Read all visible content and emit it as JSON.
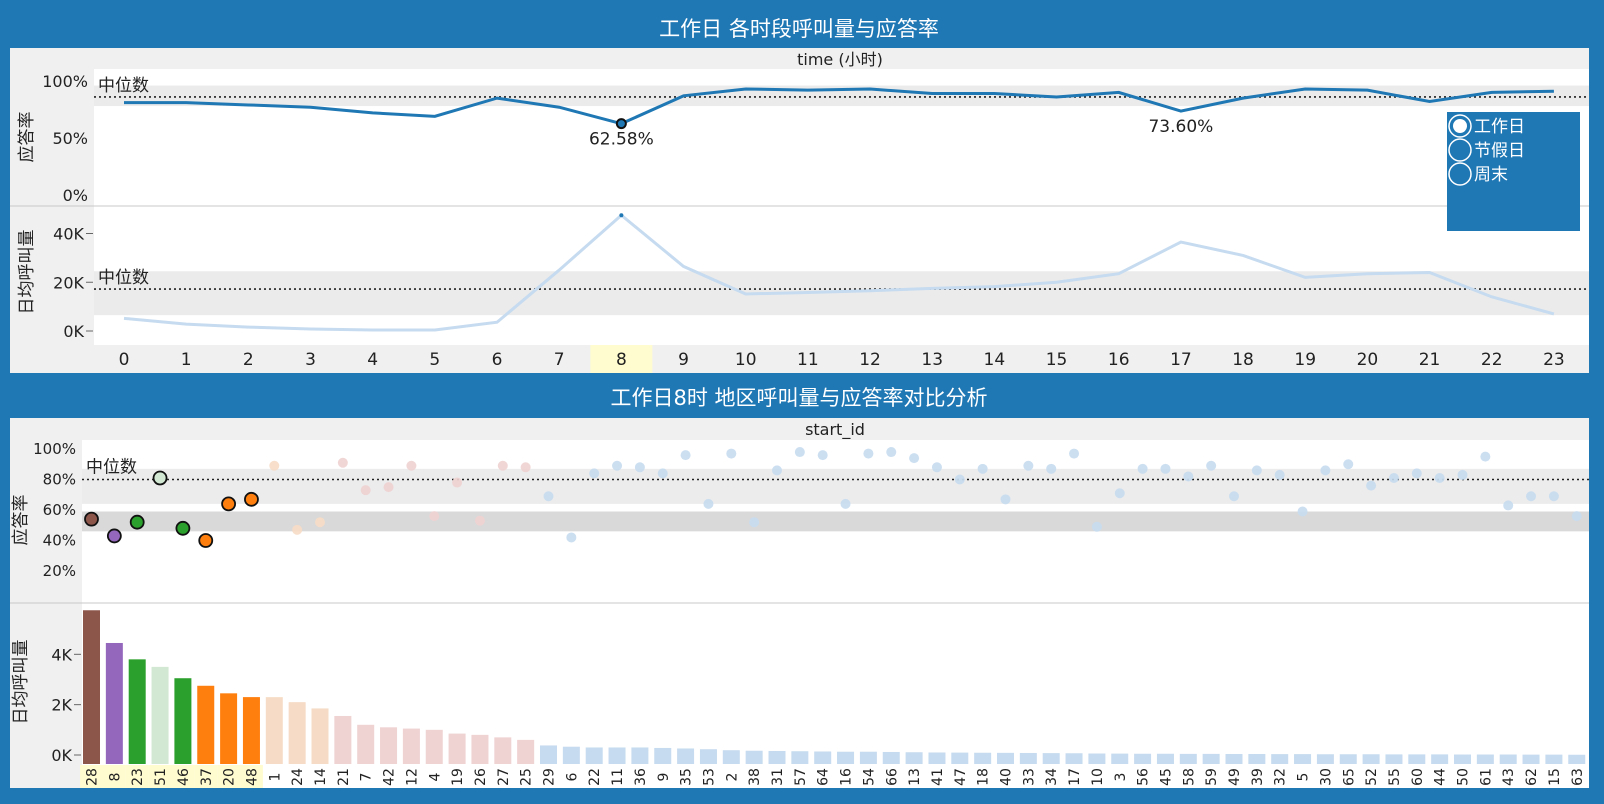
{
  "dashboard": {
    "top_title": "工作日 各时段呼叫量与应答率",
    "bottom_title": "工作日8时 地区呼叫量与应答率对比分析",
    "median_label": "中位数"
  },
  "legend": {
    "items": [
      "工作日",
      "节假日",
      "周末"
    ],
    "selected": "工作日"
  },
  "colors": {
    "frame": "#1f77b4",
    "line_dark": "#1f77b4",
    "line_light": "#c6dbef",
    "highlight": "#fffccf",
    "band": "#ebebeb"
  },
  "chart_data": [
    {
      "id": "hourly",
      "type": "line",
      "xlabel": "time (小时)",
      "categories": [
        "0",
        "1",
        "2",
        "3",
        "4",
        "5",
        "6",
        "7",
        "8",
        "9",
        "10",
        "11",
        "12",
        "13",
        "14",
        "15",
        "16",
        "17",
        "18",
        "19",
        "20",
        "21",
        "22",
        "23"
      ],
      "highlighted_category": "8",
      "panels": [
        {
          "name": "rate",
          "ylabel": "应答率",
          "yticks": [
            "100%",
            "50%",
            "0%"
          ],
          "ylim": [
            0,
            1
          ],
          "median": 0.86,
          "band": [
            0.78,
            0.96
          ],
          "values": [
            0.81,
            0.81,
            0.79,
            0.77,
            0.72,
            0.69,
            0.85,
            0.77,
            0.6258,
            0.87,
            0.93,
            0.92,
            0.93,
            0.89,
            0.89,
            0.86,
            0.9,
            0.736,
            0.85,
            0.93,
            0.92,
            0.82,
            0.9,
            0.91
          ],
          "annotations": [
            {
              "category": "8",
              "label": "62.58%"
            },
            {
              "category": "17",
              "label": "73.60%"
            }
          ]
        },
        {
          "name": "volume",
          "ylabel": "日均呼叫量",
          "yticks": [
            "40K",
            "20K",
            "0K"
          ],
          "ylim": [
            0,
            48000
          ],
          "median": 17200,
          "band": [
            6500,
            24500
          ],
          "values": [
            5200,
            2800,
            1600,
            800,
            400,
            400,
            3600,
            25000,
            47500,
            26500,
            15200,
            15800,
            16500,
            17500,
            18200,
            20000,
            23500,
            36500,
            31000,
            22000,
            23500,
            24000,
            14000,
            7000
          ]
        }
      ]
    },
    {
      "id": "region",
      "type": "bar",
      "xlabel": "start_id",
      "categories": [
        "28",
        "8",
        "23",
        "51",
        "46",
        "37",
        "20",
        "48",
        "1",
        "24",
        "14",
        "21",
        "7",
        "42",
        "12",
        "4",
        "19",
        "26",
        "27",
        "25",
        "29",
        "6",
        "22",
        "11",
        "36",
        "9",
        "35",
        "53",
        "2",
        "38",
        "31",
        "57",
        "64",
        "16",
        "54",
        "66",
        "13",
        "41",
        "47",
        "18",
        "40",
        "33",
        "34",
        "17",
        "10",
        "3",
        "56",
        "45",
        "58",
        "59",
        "49",
        "39",
        "32",
        "5",
        "30",
        "65",
        "52",
        "55",
        "60",
        "44",
        "50",
        "61",
        "43",
        "62",
        "15",
        "63"
      ],
      "highlighted_categories": [
        "28",
        "8",
        "23",
        "51",
        "46",
        "37",
        "20",
        "48"
      ],
      "panels": [
        {
          "name": "rate",
          "ylabel": "应答率",
          "type": "scatter",
          "yticks": [
            "100%",
            "80%",
            "60%",
            "40%",
            "20%"
          ],
          "ylim": [
            0.1,
            1.05
          ],
          "median": 0.8,
          "bands": [
            [
              0.64,
              0.87
            ],
            [
              0.46,
              0.59
            ]
          ],
          "values": [
            0.54,
            0.43,
            0.52,
            0.81,
            0.48,
            0.4,
            0.64,
            0.67,
            0.89,
            0.47,
            0.52,
            0.91,
            0.73,
            0.75,
            0.89,
            0.56,
            0.78,
            0.53,
            0.89,
            0.88,
            0.69,
            0.42,
            0.84,
            0.89,
            0.88,
            0.84,
            0.96,
            0.64,
            0.97,
            0.52,
            0.86,
            0.98,
            0.96,
            0.64,
            0.97,
            0.98,
            0.94,
            0.88,
            0.8,
            0.87,
            0.67,
            0.89,
            0.87,
            0.97,
            0.49,
            0.71,
            0.87,
            0.87,
            0.82,
            0.89,
            0.69,
            0.86,
            0.83,
            0.59,
            0.86,
            0.9,
            0.76,
            0.81,
            0.84,
            0.81,
            0.83,
            0.95,
            0.63,
            0.69,
            0.69,
            0.56
          ]
        },
        {
          "name": "volume",
          "ylabel": "日均呼叫量",
          "type": "bar",
          "yticks": [
            "4K",
            "2K",
            "0K"
          ],
          "ylim": [
            0,
            5800
          ],
          "values": [
            5750,
            4450,
            3800,
            3500,
            3050,
            2750,
            2450,
            2300,
            2300,
            2100,
            1850,
            1550,
            1200,
            1100,
            1050,
            1000,
            850,
            800,
            700,
            600,
            380,
            330,
            300,
            300,
            300,
            280,
            260,
            230,
            190,
            170,
            160,
            150,
            140,
            130,
            130,
            120,
            110,
            100,
            95,
            90,
            85,
            80,
            75,
            70,
            60,
            55,
            50,
            50,
            45,
            45,
            40,
            40,
            35,
            35,
            30,
            30,
            30,
            25,
            25,
            25,
            20,
            20,
            20,
            15,
            15,
            10
          ],
          "colors": [
            "#8c564b",
            "#9467bd",
            "#2ca02c",
            "#d3e8d3",
            "#2ca02c",
            "#ff7f0e",
            "#ff7f0e",
            "#ff7f0e",
            "#f6dcc7",
            "#f6dcc7",
            "#f6dcc7",
            "#efd2d2",
            "#efd2d2",
            "#efd2d2",
            "#efd2d2",
            "#efd2d2",
            "#efd2d2",
            "#efd2d2",
            "#efd2d2",
            "#efd2d2",
            "#c6dbef"
          ]
        }
      ]
    }
  ]
}
